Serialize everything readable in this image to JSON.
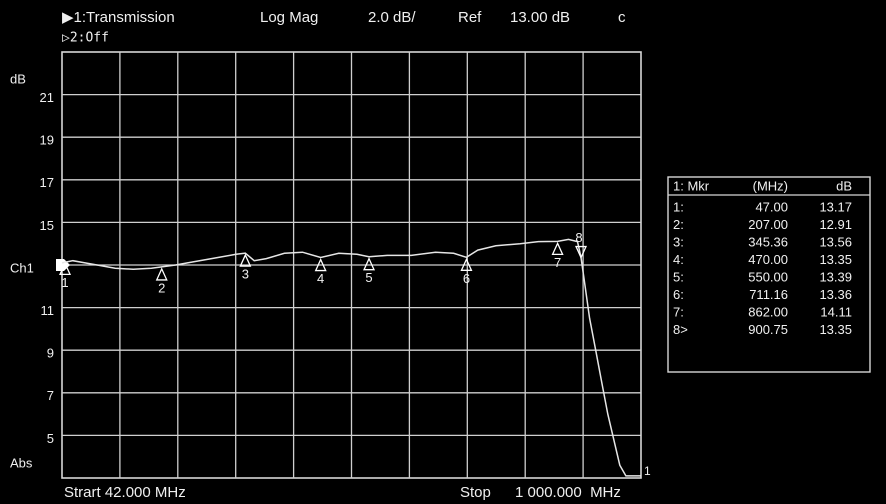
{
  "chart_data": {
    "type": "line",
    "header": [
      "▶1:Transmission",
      "Log Mag",
      "2.0 dB/",
      "Ref",
      "13.00 dB",
      "c"
    ],
    "header_line2": "▷2:Off",
    "y_unit": "dB",
    "y_bottom_label": "Abs",
    "start_label": "Strart 42.000 MHz",
    "stop_word": "Stop",
    "stop_label": "1 000.000  MHz",
    "xlim": [
      42,
      1000
    ],
    "x_divisions": 10,
    "ylim": [
      3,
      23
    ],
    "yticks": [
      21,
      19,
      17,
      15,
      {
        "value": 13,
        "label": "Ch1"
      },
      11,
      9,
      7,
      5
    ],
    "grid": true,
    "series": [
      {
        "name": "1",
        "color": "#e6e6e6",
        "x": [
          42,
          60,
          80,
          100,
          130,
          160,
          190,
          207,
          230,
          260,
          300,
          330,
          345.36,
          360,
          380,
          410,
          440,
          470,
          500,
          530,
          550,
          580,
          620,
          660,
          690,
          711.16,
          730,
          760,
          800,
          830,
          862,
          880,
          895,
          900.75,
          905,
          915,
          925,
          935,
          945,
          955,
          965,
          975,
          1000
        ],
        "values": [
          13.1,
          13.2,
          13.1,
          13.0,
          12.85,
          12.8,
          12.85,
          12.91,
          13.0,
          13.15,
          13.35,
          13.5,
          13.56,
          13.2,
          13.3,
          13.55,
          13.6,
          13.35,
          13.55,
          13.5,
          13.39,
          13.45,
          13.45,
          13.6,
          13.55,
          13.36,
          13.7,
          13.9,
          14.0,
          14.1,
          14.11,
          14.2,
          14.1,
          13.35,
          12.5,
          10.5,
          9.0,
          7.5,
          6.0,
          4.8,
          3.6,
          3.1,
          3.1
        ]
      }
    ],
    "marker_table": {
      "headers": [
        "1: Mkr",
        "(MHz)",
        "dB"
      ]
    },
    "markers": [
      {
        "name": "1",
        "row_label": "1:",
        "freq": 47,
        "freq_label": "47.00",
        "db": 13.17
      },
      {
        "name": "2",
        "row_label": "2:",
        "freq": 207,
        "freq_label": "207.00",
        "db": 12.91
      },
      {
        "name": "3",
        "row_label": "3:",
        "freq": 345.36,
        "db": 13.56
      },
      {
        "name": "4",
        "row_label": "4:",
        "freq": 470,
        "freq_label": "470.00",
        "db": 13.35
      },
      {
        "name": "5",
        "row_label": "5:",
        "freq": 550,
        "freq_label": "550.00",
        "db": 13.39
      },
      {
        "name": "6",
        "row_label": "6:",
        "freq": 711.16,
        "db": 13.36
      },
      {
        "name": "7",
        "row_label": "7:",
        "freq": 862,
        "freq_label": "862.00",
        "db": 14.11
      },
      {
        "name": "8",
        "row_label": "8>",
        "freq": 900.75,
        "db": 13.35,
        "active": true
      }
    ]
  }
}
